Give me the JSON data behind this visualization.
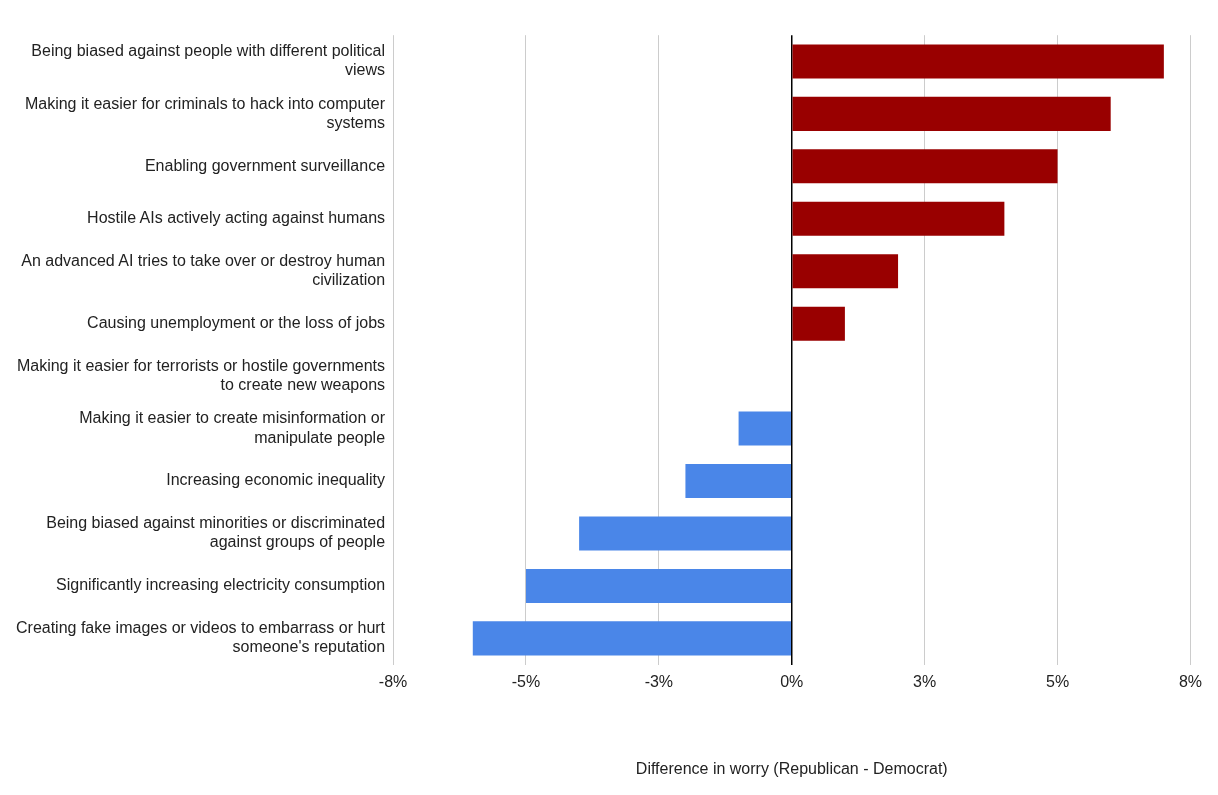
{
  "chart_data": {
    "type": "bar",
    "orientation": "horizontal",
    "xlabel": "Difference in worry (Republican - Democrat)",
    "categories": [
      "Being biased against people with different political views",
      "Making it easier for criminals to hack into computer systems",
      "Enabling government surveillance",
      "Hostile AIs actively acting against humans",
      "An advanced AI tries to take over or destroy human civilization",
      "Causing unemployment or the loss of jobs",
      "Making it easier for terrorists or hostile governments to create new weapons",
      "Making it easier to create misinformation or manipulate people",
      "Increasing economic inequality",
      "Being biased against minorities or discriminated against groups of people",
      "Significantly increasing electricity consumption",
      "Creating fake images or videos to embarrass or hurt someone's reputation"
    ],
    "values": [
      7.0,
      6.0,
      5.0,
      4.0,
      2.0,
      1.0,
      0,
      -1.0,
      -2.0,
      -4.0,
      -5.0,
      -6.0
    ],
    "colors": [
      "#990000",
      "#990000",
      "#990000",
      "#990000",
      "#990000",
      "#990000",
      "#990000",
      "#4a86e8",
      "#4a86e8",
      "#4a86e8",
      "#4a86e8",
      "#4a86e8"
    ],
    "xlim": [
      -7.5,
      7.5
    ],
    "xticks": [
      {
        "value": -7.5,
        "label": "-8%"
      },
      {
        "value": -5,
        "label": "-5%"
      },
      {
        "value": -2.5,
        "label": "-3%"
      },
      {
        "value": 0,
        "label": "0%"
      },
      {
        "value": 2.5,
        "label": "3%"
      },
      {
        "value": 5,
        "label": "5%"
      },
      {
        "value": 7.5,
        "label": "8%"
      }
    ],
    "grid": "x",
    "legend": false
  }
}
